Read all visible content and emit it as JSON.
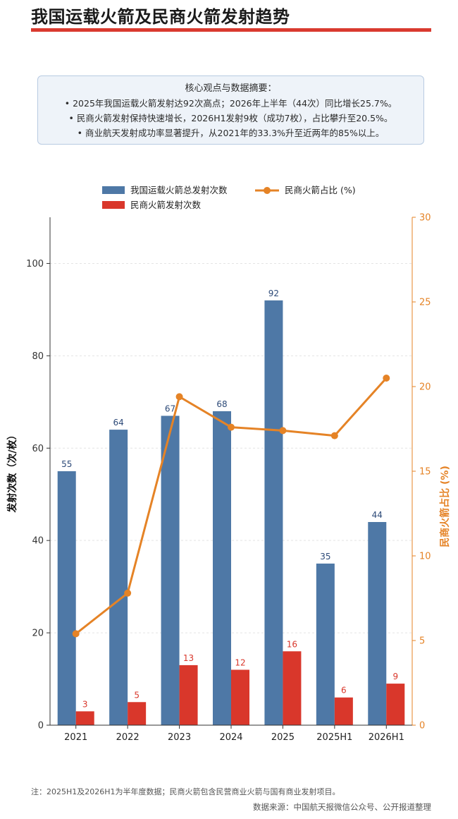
{
  "page": {
    "title": "我国运载火箭及民商火箭发射趋势",
    "summary_title": "核心观点与数据摘要：",
    "summary_points": [
      "• 2025年我国运载火箭发射达92次高点；2026年上半年（44次）同比增长25.7%。",
      "• 民商火箭发射保持快速增长，2026H1发射9枚（成功7枚），占比攀升至20.5%。",
      "• 商业航天发射成功率显著提升，从2021年的33.3%升至近两年的85%以上。"
    ],
    "footnote": "注：2025H1及2026H1为半年度数据；民商火箭包含民营商业火箭与国有商业发射项目。",
    "source": "数据来源：中国航天报微信公众号、公开报道整理"
  },
  "chart_data": {
    "type": "bar",
    "categories": [
      "2021",
      "2022",
      "2023",
      "2024",
      "2025",
      "2025H1",
      "2026H1"
    ],
    "series": [
      {
        "name": "我国运载火箭总发射次数",
        "type": "bar",
        "axis": "left",
        "color": "#4e78a6",
        "values": [
          55,
          64,
          67,
          68,
          92,
          35,
          44
        ]
      },
      {
        "name": "民商火箭发射次数",
        "type": "bar",
        "axis": "left",
        "color": "#d9372b",
        "values": [
          3,
          5,
          13,
          12,
          16,
          6,
          9
        ]
      },
      {
        "name": "民商火箭占比 (%)",
        "type": "line",
        "axis": "right",
        "color": "#e58326",
        "values": [
          5.4,
          7.8,
          19.4,
          17.6,
          17.4,
          17.1,
          20.5
        ]
      }
    ],
    "ylabel": "发射次数（次/枚）",
    "ylabel_right": "民商火箭占比 (%)",
    "ylim": [
      0,
      110
    ],
    "ylim_right": [
      0,
      30
    ],
    "yticks": [
      0,
      20,
      40,
      60,
      80,
      100
    ],
    "yticks_right": [
      0,
      5,
      10,
      15,
      20,
      25,
      30
    ],
    "grid": "horizontal dashed",
    "legend_position": "top",
    "colors": {
      "bar_total": "#4e78a6",
      "bar_commercial": "#d9372b",
      "line": "#e58326",
      "label_total": "#2d4a78",
      "label_commercial": "#d9372b"
    }
  }
}
